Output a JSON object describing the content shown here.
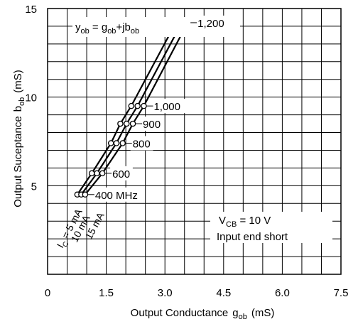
{
  "chart_data": {
    "type": "line",
    "xlabel": "Output Conductance",
    "xlabel_symbol": "g",
    "xlabel_sub": "ob",
    "xlabel_unit": "(mS)",
    "ylabel": "Output Suceptance",
    "ylabel_symbol": "b",
    "ylabel_sub": "ob",
    "ylabel_unit": "(mS)",
    "xlim": [
      0,
      7.5
    ],
    "ylim": [
      0,
      15
    ],
    "x_ticks": [
      0,
      1.5,
      3.0,
      4.5,
      6.0,
      7.5
    ],
    "x_tick_labels": [
      "0",
      "1.5",
      "3.0",
      "4.5",
      "6.0",
      "7.5"
    ],
    "y_ticks": [
      5,
      10,
      15
    ],
    "y_tick_labels": [
      "5",
      "10",
      "15"
    ],
    "grid": true,
    "formula": {
      "y": "y",
      "ob1": "ob",
      "eq": " = g",
      "ob2": "ob",
      "plus": "+jb",
      "ob3": "ob"
    },
    "frequency_labels": [
      {
        "text": "400 MHz",
        "freq": 400
      },
      {
        "text": "600",
        "freq": 600
      },
      {
        "text": "800",
        "freq": 800
      },
      {
        "text": "900",
        "freq": 900
      },
      {
        "text": "1,000",
        "freq": 1000
      },
      {
        "text": "1,200",
        "freq": 1200
      }
    ],
    "series": [
      {
        "name": "IC = 5 mA",
        "points": [
          {
            "f": 400,
            "x": 0.76,
            "y": 4.5
          },
          {
            "f": 600,
            "x": 1.13,
            "y": 5.7
          },
          {
            "f": 800,
            "x": 1.62,
            "y": 7.4
          },
          {
            "f": 900,
            "x": 1.86,
            "y": 8.5
          },
          {
            "f": 1000,
            "x": 2.14,
            "y": 9.5
          },
          {
            "f": 1200,
            "x": 3.28,
            "y": 14.2
          }
        ]
      },
      {
        "name": "10 mA",
        "points": [
          {
            "f": 400,
            "x": 0.86,
            "y": 4.5
          },
          {
            "f": 600,
            "x": 1.26,
            "y": 5.7
          },
          {
            "f": 800,
            "x": 1.76,
            "y": 7.4
          },
          {
            "f": 900,
            "x": 2.02,
            "y": 8.5
          },
          {
            "f": 1000,
            "x": 2.3,
            "y": 9.5
          },
          {
            "f": 1200,
            "x": 3.43,
            "y": 14.2
          }
        ]
      },
      {
        "name": "15 mA",
        "points": [
          {
            "f": 400,
            "x": 0.96,
            "y": 4.5
          },
          {
            "f": 600,
            "x": 1.4,
            "y": 5.7
          },
          {
            "f": 800,
            "x": 1.92,
            "y": 7.4
          },
          {
            "f": 900,
            "x": 2.18,
            "y": 8.5
          },
          {
            "f": 1000,
            "x": 2.46,
            "y": 9.5
          },
          {
            "f": 1200,
            "x": 3.58,
            "y": 14.2
          }
        ]
      }
    ],
    "curve_labels": [
      {
        "pre": "I",
        "sub": "C",
        "post": " = 5 mA"
      },
      {
        "pre": "10 mA",
        "sub": "",
        "post": ""
      },
      {
        "pre": "15 mA",
        "sub": "",
        "post": ""
      }
    ],
    "conditions": [
      {
        "pre": "V",
        "sub": "CB",
        "post": " = 10 V"
      },
      {
        "pre": "Input end short",
        "sub": "",
        "post": ""
      }
    ]
  }
}
